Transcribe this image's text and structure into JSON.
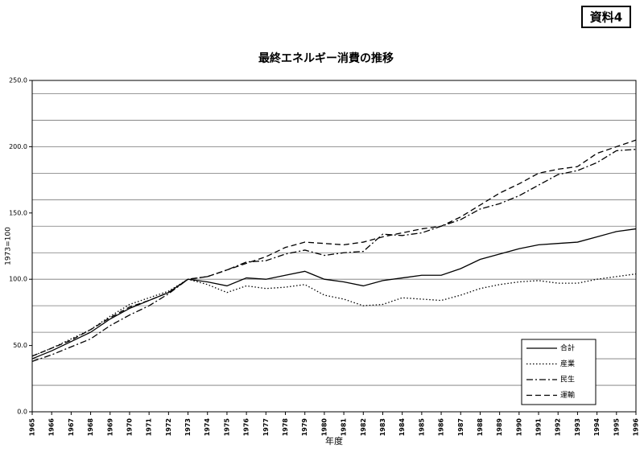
{
  "badge": "資料4",
  "chart_data": {
    "type": "line",
    "title": "最終エネルギー消費の推移",
    "ylabel": "1973=100",
    "xlabel": "年度",
    "categories": [
      "1965",
      "1966",
      "1967",
      "1968",
      "1969",
      "1970",
      "1971",
      "1972",
      "1973",
      "1974",
      "1975",
      "1976",
      "1977",
      "1978",
      "1979",
      "1980",
      "1981",
      "1982",
      "1983",
      "1984",
      "1985",
      "1986",
      "1987",
      "1988",
      "1989",
      "1990",
      "1991",
      "1992",
      "1993",
      "1994",
      "1995",
      "1996"
    ],
    "series": [
      {
        "name": "合計",
        "color": "#000000",
        "dash": "solid",
        "values": [
          40,
          46,
          53,
          60,
          70,
          78,
          84,
          90,
          100,
          98,
          95,
          101,
          100,
          103,
          106,
          100,
          98,
          95,
          99,
          101,
          103,
          103,
          108,
          115,
          119,
          123,
          126,
          127,
          128,
          132,
          136,
          138
        ]
      },
      {
        "name": "産業",
        "color": "#000000",
        "dash": "dot",
        "values": [
          42,
          48,
          55,
          62,
          72,
          81,
          86,
          91,
          100,
          96,
          90,
          95,
          93,
          94,
          96,
          88,
          85,
          80,
          81,
          86,
          85,
          84,
          88,
          93,
          96,
          98,
          99,
          97,
          97,
          100,
          102,
          104
        ]
      },
      {
        "name": "民生",
        "color": "#000000",
        "dash": "dashdot",
        "values": [
          38,
          43,
          49,
          55,
          65,
          73,
          80,
          89,
          100,
          102,
          107,
          113,
          114,
          119,
          122,
          118,
          120,
          121,
          134,
          133,
          135,
          140,
          145,
          153,
          157,
          163,
          171,
          179,
          182,
          188,
          197,
          198
        ]
      },
      {
        "name": "運輸",
        "color": "#000000",
        "dash": "dash",
        "values": [
          42,
          48,
          54,
          62,
          71,
          79,
          84,
          90,
          100,
          102,
          107,
          112,
          117,
          124,
          128,
          127,
          126,
          128,
          132,
          135,
          138,
          140,
          147,
          156,
          165,
          172,
          180,
          183,
          185,
          195,
          200,
          205
        ]
      }
    ],
    "ylim": [
      0,
      250
    ],
    "yticks": [
      {
        "value": 0,
        "label": "0.0"
      },
      {
        "value": 50,
        "label": "50.0"
      },
      {
        "value": 100,
        "label": "100.0"
      },
      {
        "value": 150,
        "label": "150.0"
      },
      {
        "value": 200,
        "label": "200.0"
      },
      {
        "value": 250,
        "label": "250.0"
      }
    ],
    "ygrid": [
      20,
      40,
      60,
      80,
      100,
      120,
      140,
      160,
      180,
      200,
      220,
      240
    ],
    "grid": true,
    "legend": "lower right"
  }
}
